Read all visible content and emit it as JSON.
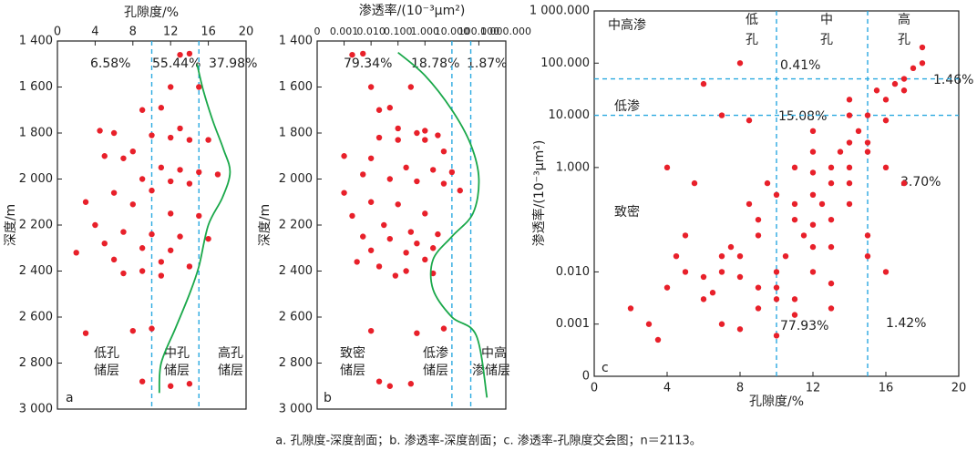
{
  "caption": "a. 孔隙度-深度剖面；b. 渗透率-深度剖面；c. 渗透率-孔隙度交会图；n＝2113。",
  "chart_data": [
    {
      "type": "scatter",
      "panel": "a",
      "xlabel": "孔隙度/%",
      "ylabel": "深度/m",
      "x_axis_side": "top",
      "xlim": [
        0,
        20
      ],
      "xticks": [
        0,
        4,
        8,
        12,
        16,
        20
      ],
      "ylim": [
        1400,
        3000
      ],
      "yreverse": true,
      "yticks": [
        {
          "value": 1400,
          "label": "1 400"
        },
        {
          "value": 1600,
          "label": "1 600"
        },
        {
          "value": 1800,
          "label": "1 800"
        },
        {
          "value": 2000,
          "label": "2 000"
        },
        {
          "value": 2200,
          "label": "2 200"
        },
        {
          "value": 2400,
          "label": "2 400"
        },
        {
          "value": 2600,
          "label": "2 600"
        },
        {
          "value": 2800,
          "label": "2 800"
        },
        {
          "value": 3000,
          "label": "3 000"
        }
      ],
      "xthresholds": [
        10,
        15
      ],
      "annotations": [
        "6.58%",
        "55.44%",
        "37.98%"
      ],
      "zones": [
        [
          "低孔",
          "储层"
        ],
        [
          "中孔",
          "储层"
        ],
        [
          "高孔",
          "储层"
        ]
      ],
      "series": [
        {
          "color": "#e8202a",
          "x": [
            13,
            14,
            12,
            15,
            9,
            11,
            13,
            4.5,
            6,
            10,
            12,
            14,
            16,
            8,
            5,
            7,
            11,
            13,
            15,
            17,
            9,
            12,
            14,
            10,
            6,
            3,
            8,
            12,
            15,
            4,
            7,
            10,
            13,
            16,
            5,
            9,
            12,
            2,
            6,
            11,
            14,
            9,
            7,
            11,
            8,
            3,
            10,
            12,
            14,
            9
          ],
          "values": [
            1460,
            1455,
            1600,
            1600,
            1700,
            1690,
            1780,
            1790,
            1800,
            1810,
            1820,
            1830,
            1830,
            1880,
            1900,
            1910,
            1950,
            1960,
            1970,
            1980,
            2000,
            2010,
            2020,
            2050,
            2060,
            2100,
            2110,
            2150,
            2160,
            2200,
            2230,
            2240,
            2250,
            2260,
            2280,
            2300,
            2310,
            2320,
            2350,
            2360,
            2380,
            2400,
            2410,
            2420,
            2660,
            2670,
            2650,
            2900,
            2890,
            2880
          ]
        }
      ],
      "curve": {
        "color": "#1aa84a",
        "x": [
          14.8,
          15.5,
          16.5,
          17.6,
          18.3,
          17.5,
          16,
          15,
          14,
          12.5,
          11,
          10.8
        ],
        "values": [
          1500,
          1620,
          1750,
          1870,
          1970,
          2080,
          2200,
          2380,
          2500,
          2650,
          2800,
          2930
        ]
      }
    },
    {
      "type": "scatter",
      "panel": "b",
      "xlabel": "渗透率/(10⁻³μm²)",
      "ylabel": "深度/m",
      "x_axis_side": "top",
      "xlim": [
        0.0001,
        1000
      ],
      "xlog": true,
      "xticks": [
        {
          "value": 0.0001,
          "label": "0"
        },
        0.001,
        {
          "value": 0.01,
          "label": "0.010"
        },
        {
          "value": 0.1,
          "label": "0.100"
        },
        {
          "value": 1,
          "label": "1.000"
        },
        {
          "value": 10,
          "label": "10.000"
        },
        {
          "value": 100,
          "label": "100.000"
        },
        {
          "value": 1000,
          "label": "1 000.000"
        }
      ],
      "ylim": [
        1400,
        3000
      ],
      "yreverse": true,
      "yticks": [
        {
          "value": 1400,
          "label": "1 400"
        },
        {
          "value": 1600,
          "label": "1 600"
        },
        {
          "value": 1800,
          "label": "1 800"
        },
        {
          "value": 2000,
          "label": "2 000"
        },
        {
          "value": 2200,
          "label": "2 200"
        },
        {
          "value": 2400,
          "label": "2 400"
        },
        {
          "value": 2600,
          "label": "2 600"
        },
        {
          "value": 2800,
          "label": "2 800"
        },
        {
          "value": 3000,
          "label": "3 000"
        }
      ],
      "xthresholds": [
        10,
        50
      ],
      "annotations": [
        "79.34%",
        "18.78%",
        "1.87%"
      ],
      "zones": [
        [
          "致密",
          "储层"
        ],
        [
          "低渗",
          "储层"
        ],
        [
          "中高",
          "渗储层"
        ]
      ],
      "series": [
        {
          "color": "#e8202a",
          "x": [
            0.002,
            0.005,
            0.01,
            0.3,
            0.02,
            0.05,
            0.1,
            1,
            0.5,
            3,
            0.02,
            0.1,
            1,
            5,
            0.001,
            0.01,
            0.2,
            2,
            10,
            0.005,
            0.05,
            0.5,
            5,
            20,
            0.001,
            0.01,
            0.1,
            1,
            0.002,
            0.03,
            0.3,
            3,
            0.005,
            0.05,
            0.5,
            2,
            0.01,
            0.2,
            1,
            0.003,
            0.02,
            0.2,
            2,
            0.08,
            0.01,
            0.5,
            5,
            0.05,
            0.3,
            0.02
          ],
          "values": [
            1460,
            1455,
            1600,
            1600,
            1700,
            1690,
            1780,
            1790,
            1800,
            1810,
            1820,
            1830,
            1830,
            1880,
            1900,
            1910,
            1950,
            1960,
            1970,
            1980,
            2000,
            2010,
            2020,
            2050,
            2060,
            2100,
            2110,
            2150,
            2160,
            2200,
            2230,
            2240,
            2250,
            2260,
            2280,
            2300,
            2310,
            2320,
            2350,
            2360,
            2380,
            2400,
            2410,
            2420,
            2660,
            2670,
            2650,
            2900,
            2890,
            2880
          ]
        }
      ],
      "curve": {
        "color": "#1aa84a",
        "x": [
          0.1,
          1,
          10,
          50,
          100,
          60,
          10,
          2,
          2,
          10,
          80,
          200
        ],
        "values": [
          1450,
          1550,
          1700,
          1850,
          2000,
          2150,
          2250,
          2350,
          2480,
          2600,
          2680,
          2950
        ]
      }
    },
    {
      "type": "scatter",
      "panel": "c",
      "xlabel": "孔隙度/%",
      "ylabel": "渗透率/(10⁻³μm²)",
      "x_axis_side": "bottom",
      "xlim": [
        0,
        20
      ],
      "xticks": [
        0,
        4,
        8,
        12,
        16,
        20
      ],
      "ylim": [
        0.0001,
        1000
      ],
      "ylog": true,
      "yticks": [
        {
          "value": 0.0001,
          "label": "0"
        },
        0.001,
        {
          "value": 0.01,
          "label": "0.010"
        },
        {
          "value": 1,
          "label": "1.000"
        },
        {
          "value": 10,
          "label": "10.000"
        },
        {
          "value": 100,
          "label": "100.000"
        },
        {
          "value": 1000,
          "label": "1 000.000"
        }
      ],
      "xthresholds": [
        10,
        15
      ],
      "ythresholds": [
        10,
        50
      ],
      "annotations": [
        "中高渗",
        "低渗",
        "致密",
        "0.41%",
        "1.46%",
        "15.08%",
        "3.70%",
        "77.93%",
        "1.42%"
      ],
      "zones": [
        [
          "低",
          "孔"
        ],
        [
          "中",
          "孔"
        ],
        [
          "高",
          "孔"
        ]
      ],
      "series": [
        {
          "color": "#e8202a",
          "x": [
            2,
            3,
            4,
            5,
            6,
            7,
            8,
            9,
            10,
            11,
            12,
            13,
            14,
            15,
            16,
            17,
            18,
            8.5,
            9.5,
            10.5,
            11.5,
            12.5,
            13.5,
            14.5,
            15.5,
            16.5,
            17.5,
            6.5,
            7.5,
            5.5,
            9,
            10,
            11,
            12,
            13,
            14,
            15,
            16,
            7,
            8,
            3.5,
            4.5,
            6,
            8,
            10,
            12,
            14,
            16,
            18,
            13,
            11,
            12,
            13,
            14,
            15,
            9,
            10,
            11,
            12,
            10,
            5,
            6,
            7,
            8,
            9,
            12,
            13,
            14,
            15,
            17,
            4,
            7,
            8.5,
            11,
            13,
            15,
            16,
            17,
            14,
            12
          ],
          "values": [
            0.002,
            0.001,
            0.005,
            0.01,
            0.003,
            0.02,
            0.008,
            0.05,
            0.01,
            0.1,
            0.3,
            1,
            3,
            10,
            20,
            50,
            100,
            0.2,
            0.5,
            0.02,
            0.05,
            0.2,
            2,
            5,
            30,
            40,
            80,
            0.004,
            0.03,
            0.5,
            0.002,
            0.005,
            1,
            0.01,
            0.1,
            0.5,
            2,
            8,
            0.001,
            0.0008,
            0.0005,
            0.02,
            40,
            100,
            0.3,
            5,
            20,
            0.01,
            200,
            0.002,
            0.003,
            0.08,
            0.5,
            1,
            0.05,
            0.005,
            0.003,
            0.2,
            2,
            0.0006,
            0.05,
            0.008,
            0.01,
            0.02,
            0.1,
            0.03,
            0.03,
            0.2,
            3,
            0.5,
            1,
            10,
            8,
            0.0015,
            0.006,
            0.02,
            1,
            30,
            10,
            0.8
          ]
        }
      ]
    }
  ]
}
